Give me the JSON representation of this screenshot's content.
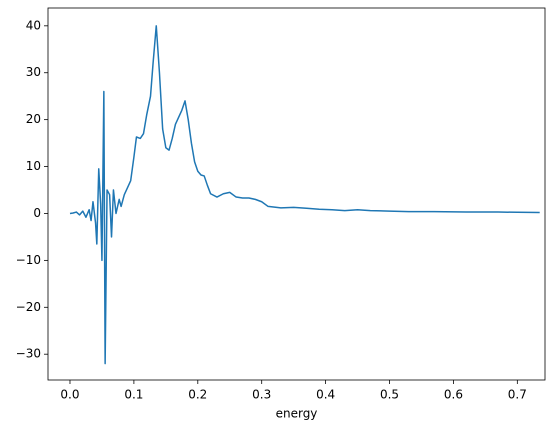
{
  "chart_data": {
    "type": "line",
    "x_label": "energy",
    "color": "#1f77b4",
    "x": [
      0.0,
      0.005,
      0.01,
      0.015,
      0.02,
      0.025,
      0.03,
      0.033,
      0.036,
      0.04,
      0.042,
      0.045,
      0.048,
      0.05,
      0.053,
      0.055,
      0.058,
      0.062,
      0.065,
      0.068,
      0.072,
      0.077,
      0.08,
      0.085,
      0.09,
      0.095,
      0.1,
      0.104,
      0.11,
      0.115,
      0.12,
      0.126,
      0.13,
      0.135,
      0.14,
      0.145,
      0.15,
      0.155,
      0.16,
      0.165,
      0.17,
      0.175,
      0.18,
      0.185,
      0.19,
      0.195,
      0.2,
      0.205,
      0.21,
      0.215,
      0.22,
      0.23,
      0.24,
      0.25,
      0.26,
      0.27,
      0.28,
      0.29,
      0.3,
      0.31,
      0.33,
      0.35,
      0.37,
      0.39,
      0.41,
      0.43,
      0.45,
      0.47,
      0.5,
      0.53,
      0.57,
      0.62,
      0.67,
      0.7,
      0.735
    ],
    "values": [
      0,
      0.1,
      0.3,
      -0.3,
      0.5,
      -0.8,
      0.8,
      -1.5,
      2.5,
      -2,
      -6.5,
      9.5,
      2,
      -10,
      26,
      -32,
      5,
      4,
      -5,
      5,
      0,
      3,
      1.5,
      4,
      5.5,
      7,
      12,
      16.3,
      16,
      17,
      21,
      25,
      32,
      40,
      30,
      18,
      14,
      13.5,
      16,
      19,
      20.5,
      22,
      24,
      20,
      15,
      11,
      9,
      8.2,
      8,
      6,
      4.2,
      3.5,
      4.2,
      4.5,
      3.5,
      3.3,
      3.3,
      3,
      2.5,
      1.5,
      1.2,
      1.3,
      1.1,
      0.9,
      0.8,
      0.6,
      0.8,
      0.6,
      0.5,
      0.4,
      0.4,
      0.3,
      0.3,
      0.25,
      0.2
    ],
    "xlim": [
      -0.0344,
      0.7433
    ],
    "ylim": [
      -35.5,
      43.8
    ],
    "xticks": [
      {
        "value": 0,
        "label": "0.0"
      },
      0.1,
      0.2,
      0.3,
      0.4,
      0.5,
      0.6,
      0.7
    ],
    "yticks": [
      {
        "value": -30,
        "label": "−30"
      },
      {
        "value": -20,
        "label": "−20"
      },
      {
        "value": -10,
        "label": "−10"
      },
      0,
      10,
      20,
      30,
      40
    ]
  }
}
